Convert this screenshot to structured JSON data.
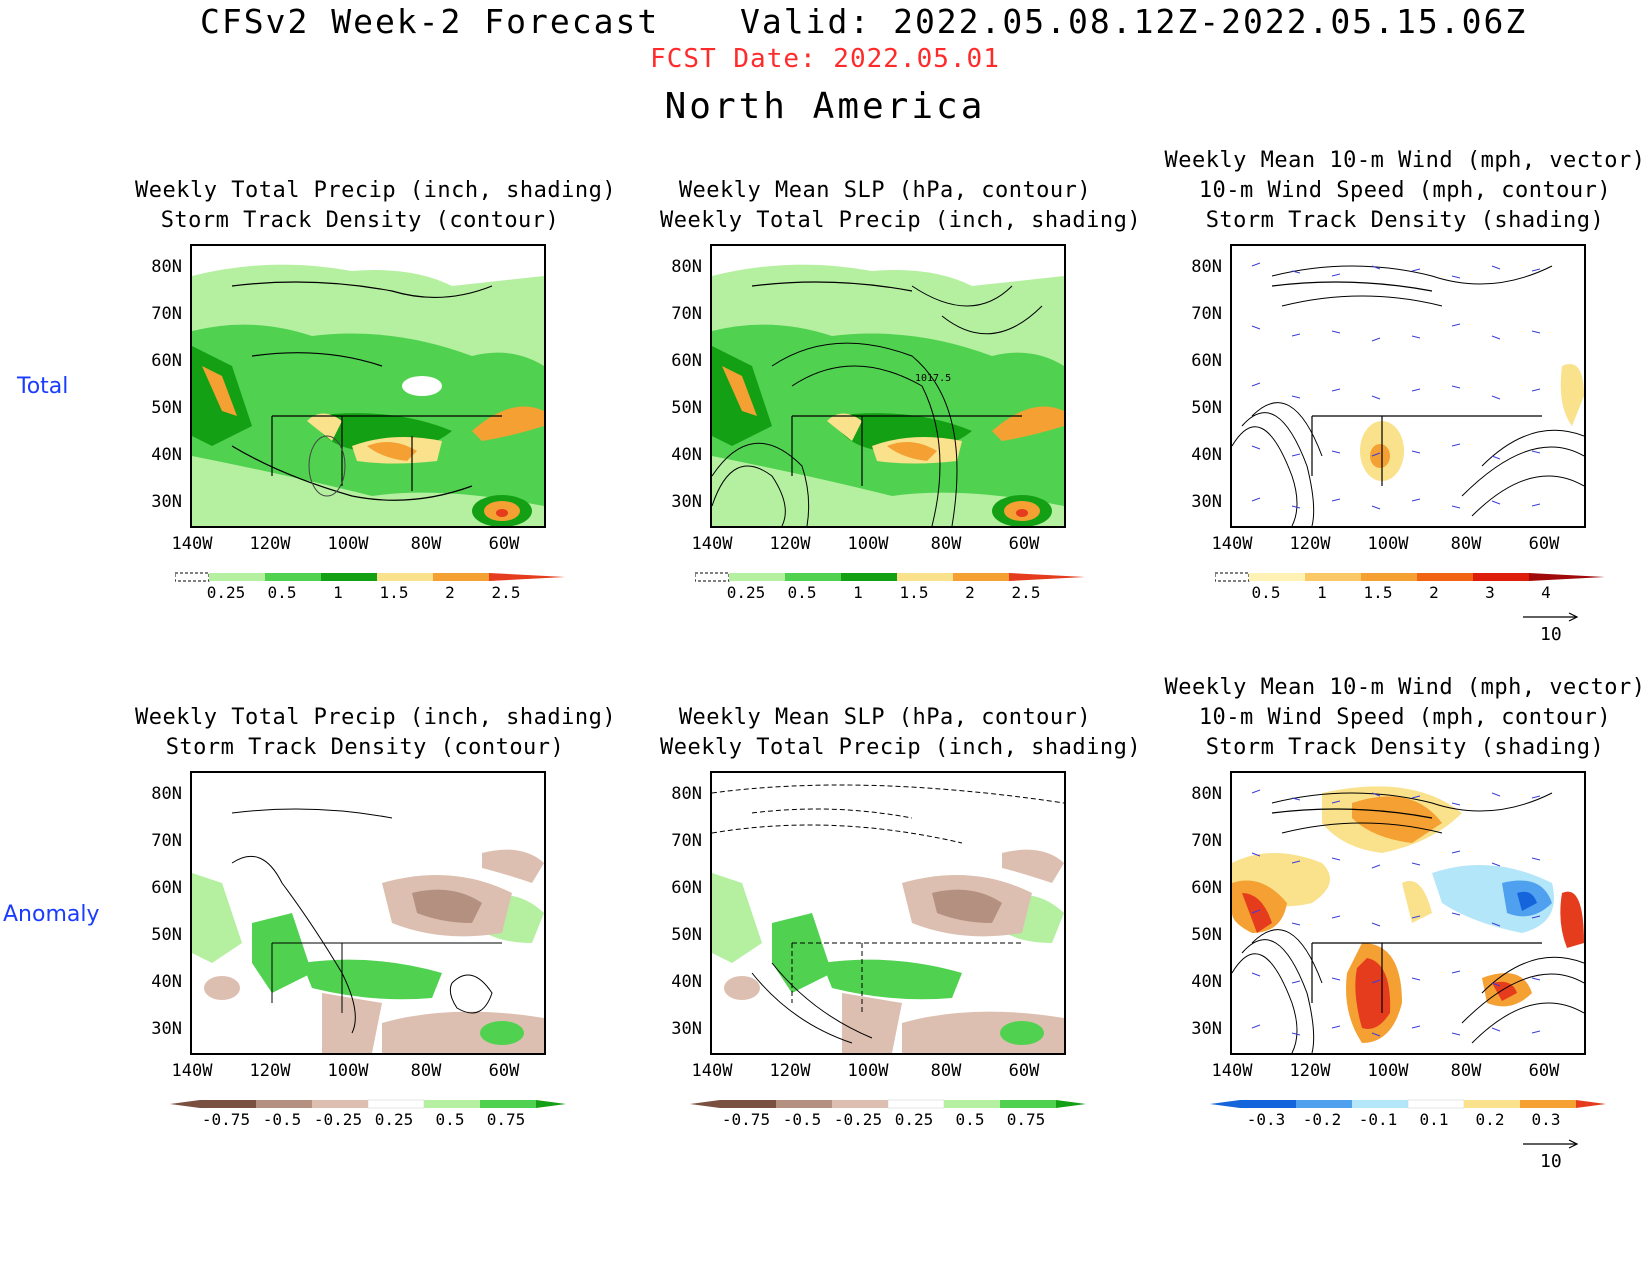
{
  "header": {
    "title": "CFSv2 Week-2 Forecast",
    "valid": "Valid: 2022.05.08.12Z-2022.05.15.06Z",
    "fcst_date": "FCST Date: 2022.05.01",
    "region": "North America"
  },
  "rows": {
    "total": "Total",
    "anomaly": "Anomaly"
  },
  "panels": {
    "p1": {
      "line1": "Weekly Total Precip (inch, shading)",
      "line2": "Storm Track Density (contour)"
    },
    "p2": {
      "line1": "Weekly Mean SLP (hPa, contour)",
      "line2": "Weekly Total Precip (inch, shading)",
      "contour_label": "1017.5"
    },
    "p3": {
      "line1": "Weekly Mean 10-m Wind (mph, vector)",
      "line2": "10-m Wind Speed (mph, contour)",
      "line3": "Storm Track Density (shading)"
    },
    "p4": {
      "line1": "Weekly Total Precip (inch, shading)",
      "line2": "Storm Track Density (contour)"
    },
    "p5": {
      "line1": "Weekly Mean SLP (hPa, contour)",
      "line2": "Weekly Total Precip (inch, shading)"
    },
    "p6": {
      "line1": "Weekly Mean 10-m Wind (mph, vector)",
      "line2": "10-m Wind Speed (mph, contour)",
      "line3": "Storm Track Density (shading)"
    }
  },
  "axes": {
    "lat": [
      "80N",
      "70N",
      "60N",
      "50N",
      "40N",
      "30N"
    ],
    "lon": [
      "140W",
      "120W",
      "100W",
      "80W",
      "60W"
    ]
  },
  "colorbars": {
    "precip_total": [
      "0.25",
      "0.5",
      "1",
      "1.5",
      "2",
      "2.5"
    ],
    "storm_total": [
      "0.5",
      "1",
      "1.5",
      "2",
      "3",
      "4"
    ],
    "precip_anom": [
      "-0.75",
      "-0.5",
      "-0.25",
      "0.25",
      "0.5",
      "0.75"
    ],
    "storm_anom": [
      "-0.3",
      "-0.2",
      "-0.1",
      "0.1",
      "0.2",
      "0.3"
    ]
  },
  "colors": {
    "green_light": "#b4f0a0",
    "green_mid": "#50d250",
    "green_dark": "#14a014",
    "yellow": "#fae18c",
    "orange": "#f5a032",
    "red": "#e63c1e",
    "brown_light": "#dcbfb0",
    "brown_mid": "#b49080",
    "brown_dark": "#7a5040",
    "blue_dark": "#1464dc",
    "blue_mid": "#50a0f0",
    "blue_light": "#b4e6fa",
    "vector": "#3c3cdc"
  },
  "vector_ref": "10"
}
